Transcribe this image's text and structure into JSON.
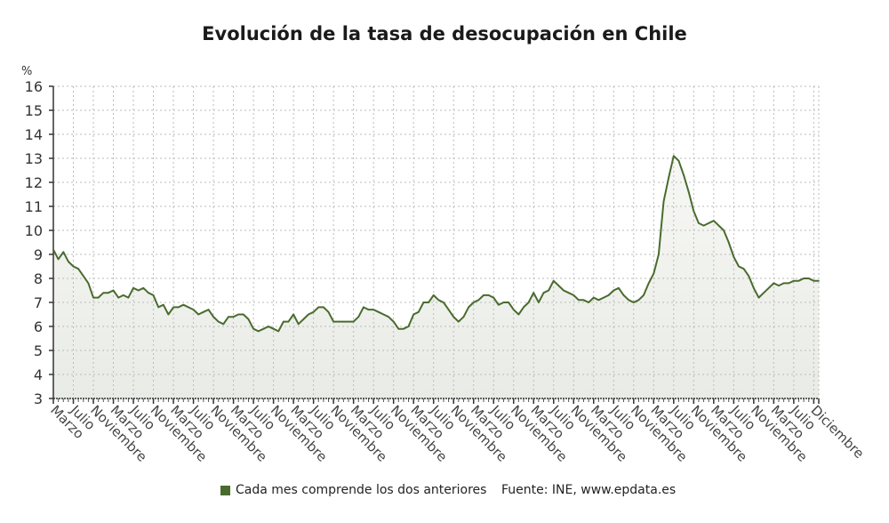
{
  "chart_data": {
    "type": "area",
    "title": "Evolución de la tasa de desocupación en Chile",
    "ylabel": "%",
    "xlabel": "",
    "ylim": [
      3,
      16
    ],
    "yticks": [
      3,
      4,
      5,
      6,
      7,
      8,
      9,
      10,
      11,
      12,
      13,
      14,
      15,
      16
    ],
    "grid": true,
    "x_tick_labels": [
      "Marzo",
      "Julio",
      "Noviembre",
      "Marzo",
      "Julio",
      "Noviembre",
      "Marzo",
      "Julio",
      "Noviembre",
      "Marzo",
      "Julio",
      "Noviembre",
      "Marzo",
      "Julio",
      "Noviembre",
      "Marzo",
      "Julio",
      "Noviembre",
      "Marzo",
      "Julio",
      "Noviembre",
      "Marzo",
      "Julio",
      "Noviembre",
      "Marzo",
      "Julio",
      "Noviembre",
      "Marzo",
      "Julio",
      "Noviembre",
      "Marzo",
      "Julio",
      "Noviembre",
      "Marzo",
      "Julio",
      "Noviembre",
      "Marzo",
      "Julio",
      "Diciembre"
    ],
    "values": [
      9.2,
      8.8,
      9.1,
      8.7,
      8.5,
      8.4,
      8.1,
      7.8,
      7.2,
      7.2,
      7.4,
      7.4,
      7.5,
      7.2,
      7.3,
      7.2,
      7.6,
      7.5,
      7.6,
      7.4,
      7.3,
      6.8,
      6.9,
      6.5,
      6.8,
      6.8,
      6.9,
      6.8,
      6.7,
      6.5,
      6.6,
      6.7,
      6.4,
      6.2,
      6.1,
      6.4,
      6.4,
      6.5,
      6.5,
      6.3,
      5.9,
      5.8,
      5.9,
      6.0,
      5.9,
      5.8,
      6.2,
      6.2,
      6.5,
      6.1,
      6.3,
      6.5,
      6.6,
      6.8,
      6.8,
      6.6,
      6.2,
      6.2,
      6.2,
      6.2,
      6.2,
      6.4,
      6.8,
      6.7,
      6.7,
      6.6,
      6.5,
      6.4,
      6.2,
      5.9,
      5.9,
      6.0,
      6.5,
      6.6,
      7.0,
      7.0,
      7.3,
      7.1,
      7.0,
      6.7,
      6.4,
      6.2,
      6.4,
      6.8,
      7.0,
      7.1,
      7.3,
      7.3,
      7.2,
      6.9,
      7.0,
      7.0,
      6.7,
      6.5,
      6.8,
      7.0,
      7.4,
      7.0,
      7.4,
      7.5,
      7.9,
      7.7,
      7.5,
      7.4,
      7.3,
      7.1,
      7.1,
      7.0,
      7.2,
      7.1,
      7.2,
      7.3,
      7.5,
      7.6,
      7.3,
      7.1,
      7.0,
      7.1,
      7.3,
      7.8,
      8.2,
      9.0,
      11.2,
      12.2,
      13.1,
      12.9,
      12.3,
      11.6,
      10.8,
      10.3,
      10.2,
      10.3,
      10.4,
      10.2,
      10.0,
      9.5,
      8.9,
      8.5,
      8.4,
      8.1,
      7.6,
      7.2,
      7.4,
      7.6,
      7.8,
      7.7,
      7.8,
      7.8,
      7.9,
      7.9,
      8.0,
      8.0,
      7.9,
      7.9
    ],
    "line_color": "#4a6b2e",
    "fill_color": "#f1f2ee",
    "legend": {
      "label": "Cada mes comprende los dos anteriores",
      "color": "#4a6b2e",
      "position": "bottom"
    },
    "source": "Fuente: INE, www.epdata.es"
  }
}
